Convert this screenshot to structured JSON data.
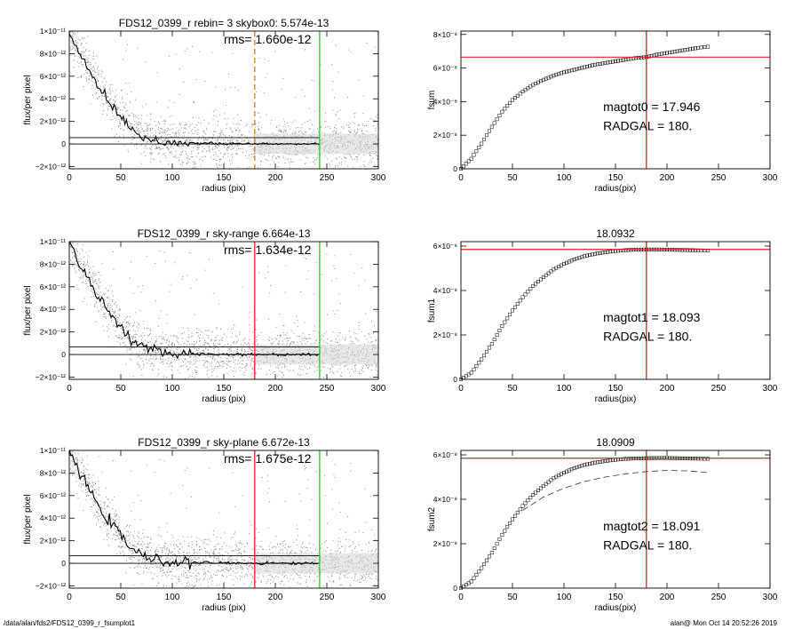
{
  "panels": [
    {
      "id": "l1",
      "kind": "profile",
      "title": "FDS12_0399_r rebin= 3    skybox0:  5.574e-13",
      "rms_label": "rms= 1.660e-12",
      "xlabel": "radius (pix)",
      "ylabel": "flux/per pixel",
      "xticks": [
        "0",
        "50",
        "100",
        "150",
        "200",
        "250",
        "300"
      ],
      "yticks": [
        "1×10⁻¹¹",
        "8×10⁻¹²",
        "6×10⁻¹²",
        "4×10⁻¹²",
        "2×10⁻¹²",
        "0",
        "−2×10⁻¹²"
      ]
    },
    {
      "id": "r1",
      "kind": "growth",
      "title": "",
      "xlabel": "radius(pix)",
      "ylabel": "fsum",
      "xticks": [
        "0",
        "50",
        "100",
        "150",
        "200",
        "250",
        "300"
      ],
      "yticks": [
        "8×10⁻⁸",
        "6×10⁻⁸",
        "4×10⁻⁸",
        "2×10⁻⁸",
        "0"
      ],
      "annot1": "magtot0 =  17.946",
      "annot2": "RADGAL =    180."
    },
    {
      "id": "l2",
      "kind": "profile",
      "title": "FDS12_0399_r sky-range  6.664e-13",
      "rms_label": "rms= 1.634e-12",
      "xlabel": "radius (pix)",
      "ylabel": "flux/per pixel",
      "xticks": [
        "0",
        "50",
        "100",
        "150",
        "200",
        "250",
        "300"
      ],
      "yticks": [
        "1×10⁻¹¹",
        "8×10⁻¹²",
        "6×10⁻¹²",
        "4×10⁻¹²",
        "2×10⁻¹²",
        "0",
        "−2×10⁻¹²"
      ]
    },
    {
      "id": "r2",
      "kind": "growth",
      "title": "18.0932",
      "xlabel": "radius(pix)",
      "ylabel": "fsum1",
      "xticks": [
        "0",
        "50",
        "100",
        "150",
        "200",
        "250",
        "300"
      ],
      "yticks": [
        "6×10⁻⁸",
        "4×10⁻⁸",
        "2×10⁻⁸",
        "0"
      ],
      "annot1": "magtot1 =  18.093",
      "annot2": "RADGAL =    180."
    },
    {
      "id": "l3",
      "kind": "profile",
      "title": "FDS12_0399_r sky-plane  6.672e-13",
      "rms_label": "rms= 1.675e-12",
      "xlabel": "radius (pix)",
      "ylabel": "flux/per pixel",
      "xticks": [
        "0",
        "50",
        "100",
        "150",
        "200",
        "250",
        "300"
      ],
      "yticks": [
        "1×10⁻¹¹",
        "8×10⁻¹²",
        "6×10⁻¹²",
        "4×10⁻¹²",
        "2×10⁻¹²",
        "0",
        "−2×10⁻¹²"
      ]
    },
    {
      "id": "r3",
      "kind": "growth",
      "title": "18.0909",
      "xlabel": "radius(pix)",
      "ylabel": "fsum2",
      "xticks": [
        "0",
        "50",
        "100",
        "150",
        "200",
        "250",
        "300"
      ],
      "yticks": [
        "6×10⁻⁸",
        "4×10⁻⁸",
        "2×10⁻⁸",
        "0"
      ],
      "annot1": "magtot2 =  18.091",
      "annot2": "RADGAL =    180."
    }
  ],
  "footer": {
    "left": "/data/alan/fds2/FDS12_0399_r_fsumplot1",
    "right": "alan@  Mon Oct 14 20:52:26 2019"
  },
  "chart_data": [
    {
      "type": "scatter",
      "title": "FDS12_0399_r rebin= 3    skybox0:  5.574e-13",
      "annotation": "rms= 1.660e-12",
      "xlabel": "radius (pix)",
      "ylabel": "flux/per pixel",
      "xlim": [
        0,
        300
      ],
      "ylim": [
        -2.2e-12,
        1e-11
      ],
      "profile_x": [
        0,
        5,
        10,
        15,
        20,
        25,
        30,
        35,
        40,
        45,
        50,
        55,
        60,
        65,
        70,
        75,
        80,
        90,
        100,
        120,
        150,
        180,
        210,
        243
      ],
      "profile_y": [
        1e-11,
        9e-12,
        8e-12,
        7.3e-12,
        6.4e-12,
        5.6e-12,
        4.9e-12,
        4.2e-12,
        3.6e-12,
        3e-12,
        2.5e-12,
        1.9e-12,
        1.4e-12,
        1e-12,
        7e-13,
        5e-13,
        3.5e-13,
        2e-13,
        1.2e-13,
        6e-14,
        2e-14,
        1e-14,
        0,
        0
      ],
      "hlines": [
        {
          "y": 5.574e-13,
          "color": "#000000"
        },
        {
          "y": 0,
          "color": "#000000"
        }
      ],
      "vlines": [
        {
          "x": 180,
          "color": "#e07a10",
          "style": "dashed"
        },
        {
          "x": 243,
          "color": "#22cc22",
          "style": "solid"
        }
      ]
    },
    {
      "type": "line",
      "title": "",
      "annotations": [
        "magtot0 =  17.946",
        "RADGAL =    180."
      ],
      "xlabel": "radius(pix)",
      "ylabel": "fsum",
      "xlim": [
        0,
        300
      ],
      "ylim": [
        0,
        8.2e-08
      ],
      "x": [
        0,
        10,
        20,
        30,
        40,
        50,
        60,
        70,
        80,
        90,
        100,
        110,
        120,
        130,
        140,
        150,
        160,
        170,
        180,
        190,
        200,
        210,
        220,
        230,
        243
      ],
      "y": [
        0,
        6e-09,
        1.5e-08,
        2.5e-08,
        3.4e-08,
        4.1e-08,
        4.6e-08,
        5e-08,
        5.3e-08,
        5.55e-08,
        5.75e-08,
        5.9e-08,
        6.05e-08,
        6.2e-08,
        6.3e-08,
        6.4e-08,
        6.5e-08,
        6.6e-08,
        6.65e-08,
        6.8e-08,
        6.9e-08,
        7e-08,
        7.1e-08,
        7.2e-08,
        7.3e-08
      ],
      "hline": {
        "y": 6.65e-08,
        "color": "#dd2222"
      },
      "vline": {
        "x": 180,
        "color": "#dd2222"
      }
    },
    {
      "type": "scatter",
      "title": "FDS12_0399_r sky-range  6.664e-13",
      "annotation": "rms= 1.634e-12",
      "xlabel": "radius (pix)",
      "ylabel": "flux/per pixel",
      "xlim": [
        0,
        300
      ],
      "ylim": [
        -2.2e-12,
        1e-11
      ],
      "profile_x": [
        0,
        5,
        10,
        15,
        20,
        25,
        30,
        35,
        40,
        45,
        50,
        55,
        60,
        65,
        70,
        75,
        80,
        90,
        100,
        120,
        150,
        180,
        210,
        243
      ],
      "profile_y": [
        1e-11,
        9e-12,
        8e-12,
        7.3e-12,
        6.4e-12,
        5.6e-12,
        4.9e-12,
        4.2e-12,
        3.6e-12,
        3e-12,
        2.5e-12,
        1.9e-12,
        1.4e-12,
        1e-12,
        7e-13,
        5e-13,
        3.5e-13,
        2e-13,
        1.2e-13,
        6e-14,
        2e-14,
        1e-14,
        0,
        0
      ],
      "hlines": [
        {
          "y": 6.664e-13,
          "color": "#000000"
        },
        {
          "y": 0,
          "color": "#000000"
        }
      ],
      "vlines": [
        {
          "x": 180,
          "color": "#dd2222",
          "style": "solid"
        },
        {
          "x": 243,
          "color": "#22cc22",
          "style": "solid"
        }
      ]
    },
    {
      "type": "line",
      "title": "18.0932",
      "annotations": [
        "magtot1 =  18.093",
        "RADGAL =    180."
      ],
      "xlabel": "radius(pix)",
      "ylabel": "fsum1",
      "xlim": [
        0,
        300
      ],
      "ylim": [
        0,
        6.2e-08
      ],
      "x": [
        0,
        10,
        20,
        30,
        40,
        50,
        60,
        70,
        80,
        90,
        100,
        110,
        120,
        130,
        140,
        150,
        160,
        170,
        180,
        190,
        200,
        210,
        220,
        230,
        243
      ],
      "y": [
        0,
        3e-09,
        9e-09,
        1.6e-08,
        2.4e-08,
        3.1e-08,
        3.7e-08,
        4.2e-08,
        4.6e-08,
        4.95e-08,
        5.2e-08,
        5.4e-08,
        5.55e-08,
        5.65e-08,
        5.72e-08,
        5.78e-08,
        5.82e-08,
        5.84e-08,
        5.85e-08,
        5.85e-08,
        5.84e-08,
        5.83e-08,
        5.82e-08,
        5.81e-08,
        5.8e-08
      ],
      "hline": {
        "y": 5.85e-08,
        "color": "#dd2222"
      },
      "vline": {
        "x": 180,
        "color": "#dd2222"
      }
    },
    {
      "type": "scatter",
      "title": "FDS12_0399_r sky-plane  6.672e-13",
      "annotation": "rms= 1.675e-12",
      "xlabel": "radius (pix)",
      "ylabel": "flux/per pixel",
      "xlim": [
        0,
        300
      ],
      "ylim": [
        -2.2e-12,
        1e-11
      ],
      "profile_x": [
        0,
        5,
        10,
        15,
        20,
        25,
        30,
        35,
        40,
        45,
        50,
        55,
        60,
        65,
        70,
        75,
        80,
        90,
        100,
        120,
        150,
        180,
        210,
        243
      ],
      "profile_y": [
        1e-11,
        9e-12,
        8e-12,
        7.3e-12,
        6.4e-12,
        5.6e-12,
        4.9e-12,
        4.2e-12,
        3.6e-12,
        3e-12,
        2.5e-12,
        1.9e-12,
        1.4e-12,
        1e-12,
        7e-13,
        5e-13,
        3.5e-13,
        2e-13,
        1.2e-13,
        6e-14,
        2e-14,
        1e-14,
        0,
        0
      ],
      "hlines": [
        {
          "y": 6.672e-13,
          "color": "#000000"
        },
        {
          "y": 0,
          "color": "#000000"
        }
      ],
      "vlines": [
        {
          "x": 180,
          "color": "#dd2222",
          "style": "solid"
        },
        {
          "x": 243,
          "color": "#22cc22",
          "style": "solid"
        }
      ]
    },
    {
      "type": "line",
      "title": "18.0909",
      "annotations": [
        "magtot2 =  18.091",
        "RADGAL =    180."
      ],
      "xlabel": "radius(pix)",
      "ylabel": "fsum2",
      "xlim": [
        0,
        300
      ],
      "ylim": [
        0,
        6.2e-08
      ],
      "x": [
        0,
        10,
        20,
        30,
        40,
        50,
        60,
        70,
        80,
        90,
        100,
        110,
        120,
        130,
        140,
        150,
        160,
        170,
        180,
        190,
        200,
        210,
        220,
        230,
        243
      ],
      "y": [
        0,
        3e-09,
        9e-09,
        1.6e-08,
        2.4e-08,
        3.1e-08,
        3.7e-08,
        4.2e-08,
        4.6e-08,
        4.95e-08,
        5.2e-08,
        5.4e-08,
        5.55e-08,
        5.65e-08,
        5.72e-08,
        5.78e-08,
        5.82e-08,
        5.84e-08,
        5.85e-08,
        5.86e-08,
        5.86e-08,
        5.85e-08,
        5.84e-08,
        5.83e-08,
        5.82e-08
      ],
      "dashed_series": {
        "x": [
          60,
          80,
          100,
          120,
          140,
          160,
          180,
          200,
          220,
          240
        ],
        "y": [
          3.5e-08,
          4.1e-08,
          4.5e-08,
          4.8e-08,
          5e-08,
          5.15e-08,
          5.25e-08,
          5.3e-08,
          5.28e-08,
          5.2e-08
        ]
      },
      "hline": {
        "y": 5.85e-08,
        "color": "#dd2222"
      },
      "vline": {
        "x": 180,
        "color": "#dd2222"
      }
    }
  ]
}
